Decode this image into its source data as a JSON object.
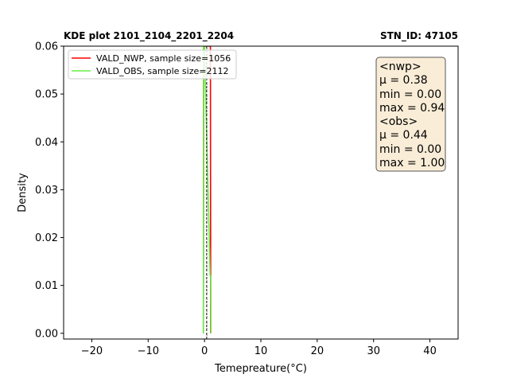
{
  "chart_data": {
    "type": "line",
    "title_left": "KDE plot 2101_2104_2201_2204",
    "title_right": "STN_ID: 47105",
    "xlabel": "Temepreature(°C)",
    "ylabel": "Density",
    "xlim": [
      -25,
      45
    ],
    "ylim": [
      -0.0012,
      0.06
    ],
    "x_ticks": [
      -20,
      -10,
      0,
      10,
      20,
      30,
      40
    ],
    "x_tick_labels": [
      "−20",
      "−10",
      "0",
      "10",
      "20",
      "30",
      "40"
    ],
    "y_ticks": [
      0.0,
      0.01,
      0.02,
      0.03,
      0.04,
      0.05,
      0.06
    ],
    "y_tick_labels": [
      "0.00",
      "0.01",
      "0.02",
      "0.03",
      "0.04",
      "0.05",
      "0.06"
    ],
    "legend_position": "top-left",
    "series": [
      {
        "name": "VALD_NWP, sample size=1056",
        "color": "#ff0000",
        "x": [
          -0.2,
          -0.15,
          -0.1,
          -0.05,
          0.0,
          0.94,
          1.0,
          1.05,
          1.1
        ],
        "y": [
          0.0,
          0.06,
          0.06,
          0.06,
          0.06,
          0.06,
          0.06,
          0.06,
          0.0
        ]
      },
      {
        "name": "VALD_OBS, sample size=2112",
        "color": "#66ee44",
        "x": [
          -0.2,
          -0.15,
          -0.1,
          0.0,
          1.0,
          1.1,
          1.15
        ],
        "y": [
          0.0,
          0.06,
          0.06,
          0.06,
          0.012,
          0.012,
          0.0
        ]
      }
    ],
    "mean_lines": [
      {
        "x": 0.38,
        "color": "#000000",
        "style": "dashed"
      },
      {
        "x": 0.44,
        "color": "#808080",
        "style": "dotted"
      }
    ],
    "stats_box": {
      "lines": [
        "<nwp>",
        "μ = 0.38",
        "min = 0.00",
        "max = 0.94",
        "<obs>",
        "μ = 0.44",
        "min = 0.00",
        "max = 1.00"
      ]
    }
  }
}
